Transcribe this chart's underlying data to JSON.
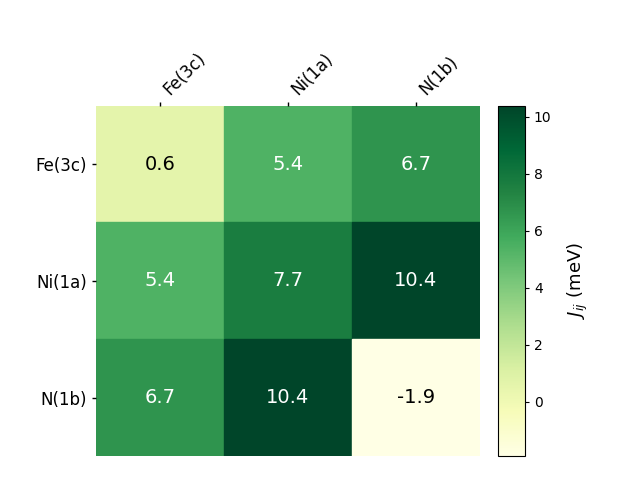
{
  "matrix": [
    [
      0.6,
      5.4,
      6.7
    ],
    [
      5.4,
      7.7,
      10.4
    ],
    [
      6.7,
      10.4,
      -1.9
    ]
  ],
  "row_labels": [
    "Fe(3c)",
    "Ni(1a)",
    "N(1b)"
  ],
  "col_labels": [
    "Fe(3c)",
    "Ni(1a)",
    "N(1b)"
  ],
  "cmap": "YlGn",
  "vmin": -1.9,
  "vmax": 10.4,
  "colorbar_label": "$\\mathit{J_{ij}}$ (meV)",
  "colorbar_ticks": [
    0,
    2,
    4,
    6,
    8,
    10
  ],
  "text_color_threshold": 4.0,
  "fontsize_cell": 14,
  "fontsize_labels": 12,
  "fontsize_colorbar": 13
}
